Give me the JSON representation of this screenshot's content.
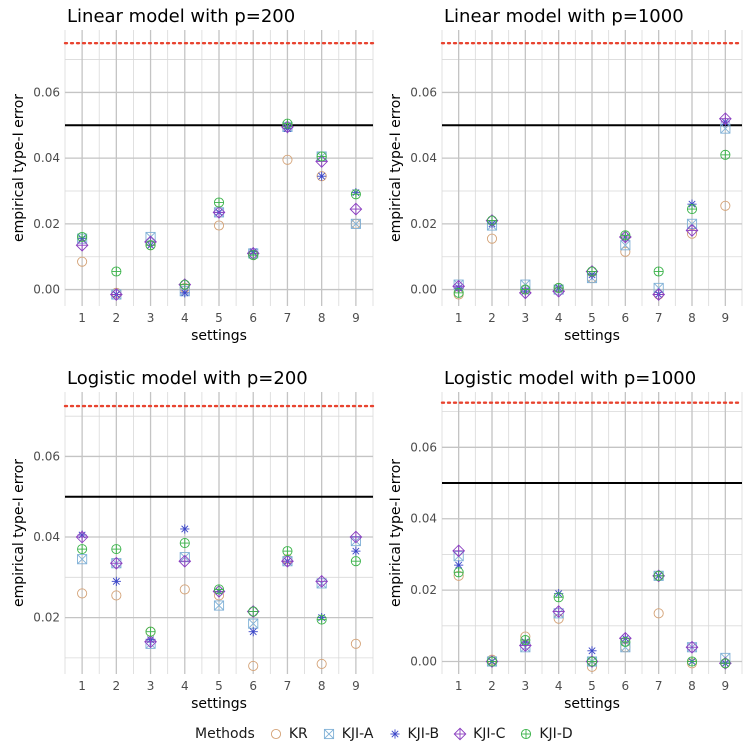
{
  "legend": {
    "title": "Methods",
    "methods": [
      {
        "key": "KR",
        "label": "KR",
        "color": "#d4a276",
        "marker": "circle-icon"
      },
      {
        "key": "KJI-A",
        "label": "KJI-A",
        "color": "#7fb0d6",
        "marker": "boxed-x-icon"
      },
      {
        "key": "KJI-B",
        "label": "KJI-B",
        "color": "#3a45c8",
        "marker": "asterisk-icon"
      },
      {
        "key": "KJI-C",
        "label": "KJI-C",
        "color": "#8b3fc0",
        "marker": "diamond-plus-icon"
      },
      {
        "key": "KJI-D",
        "label": "KJI-D",
        "color": "#3bb34a",
        "marker": "circle-plus-icon"
      }
    ]
  },
  "chart_data": [
    {
      "type": "scatter",
      "title": "Linear model with p=200",
      "xlabel": "settings",
      "ylabel": "empirical type-I error",
      "x": [
        1,
        2,
        3,
        4,
        5,
        6,
        7,
        8,
        9
      ],
      "ylim": [
        -0.005,
        0.079
      ],
      "yticks": [
        0.0,
        0.02,
        0.04,
        0.06
      ],
      "ytick_labels": [
        "0.00",
        "0.02",
        "0.04",
        "0.06"
      ],
      "reference_lines": {
        "solid": 0.05,
        "dotted": 0.075,
        "dotted_color": "#e8432f"
      },
      "series": [
        {
          "name": "KR",
          "values": [
            0.0085,
            -0.001,
            0.0135,
            0.0005,
            0.0195,
            0.0105,
            0.0395,
            0.0345,
            0.02
          ]
        },
        {
          "name": "KJI-A",
          "values": [
            0.0155,
            -0.0015,
            0.016,
            -0.0005,
            0.0235,
            0.011,
            0.0495,
            0.0405,
            0.02
          ]
        },
        {
          "name": "KJI-B",
          "values": [
            0.0155,
            -0.0015,
            0.0135,
            -0.001,
            0.0235,
            0.0115,
            0.049,
            0.0345,
            0.0295
          ]
        },
        {
          "name": "KJI-C",
          "values": [
            0.0135,
            -0.0015,
            0.0145,
            0.0015,
            0.0235,
            0.011,
            0.0495,
            0.039,
            0.0245
          ]
        },
        {
          "name": "KJI-D",
          "values": [
            0.016,
            0.0055,
            0.0135,
            0.0015,
            0.0265,
            0.0105,
            0.0505,
            0.0405,
            0.029
          ]
        }
      ]
    },
    {
      "type": "scatter",
      "title": "Linear model with p=1000",
      "xlabel": "settings",
      "ylabel": "empirical type-I error",
      "x": [
        1,
        2,
        3,
        4,
        5,
        6,
        7,
        8,
        9
      ],
      "ylim": [
        -0.005,
        0.079
      ],
      "yticks": [
        0.0,
        0.02,
        0.04,
        0.06
      ],
      "ytick_labels": [
        "0.00",
        "0.02",
        "0.04",
        "0.06"
      ],
      "reference_lines": {
        "solid": 0.05,
        "dotted": 0.075,
        "dotted_color": "#e8432f"
      },
      "series": [
        {
          "name": "KR",
          "values": [
            -0.0015,
            0.0155,
            0.0,
            0.0005,
            0.0035,
            0.0115,
            -0.0015,
            0.017,
            0.0255
          ]
        },
        {
          "name": "KJI-A",
          "values": [
            0.0015,
            0.0195,
            0.0015,
            0.0,
            0.0035,
            0.0135,
            0.0005,
            0.02,
            0.049
          ]
        },
        {
          "name": "KJI-B",
          "values": [
            0.0005,
            0.02,
            -0.0005,
            0.0005,
            0.0045,
            0.016,
            -0.0015,
            0.026,
            0.051
          ]
        },
        {
          "name": "KJI-C",
          "values": [
            0.001,
            0.021,
            -0.001,
            -0.0005,
            0.0055,
            0.016,
            -0.0015,
            0.018,
            0.052
          ]
        },
        {
          "name": "KJI-D",
          "values": [
            -0.001,
            0.021,
            0.0,
            0.0005,
            0.0055,
            0.0165,
            0.0055,
            0.0245,
            0.041
          ]
        }
      ]
    },
    {
      "type": "scatter",
      "title": "Logistic model with p=200",
      "xlabel": "settings",
      "ylabel": "empirical type-I error",
      "x": [
        1,
        2,
        3,
        4,
        5,
        6,
        7,
        8,
        9
      ],
      "ylim": [
        0.006,
        0.076
      ],
      "yticks": [
        0.02,
        0.04,
        0.06
      ],
      "ytick_labels": [
        "0.02",
        "0.04",
        "0.06"
      ],
      "reference_lines": {
        "solid": 0.05,
        "dotted": 0.0725,
        "dotted_color": "#e8432f"
      },
      "series": [
        {
          "name": "KR",
          "values": [
            0.026,
            0.0255,
            0.0165,
            0.027,
            0.0255,
            0.008,
            0.0345,
            0.0085,
            0.0135
          ]
        },
        {
          "name": "KJI-A",
          "values": [
            0.0345,
            0.0335,
            0.0135,
            0.035,
            0.023,
            0.0185,
            0.034,
            0.0285,
            0.039
          ]
        },
        {
          "name": "KJI-B",
          "values": [
            0.0405,
            0.029,
            0.0145,
            0.042,
            0.0265,
            0.0165,
            0.034,
            0.02,
            0.0365
          ]
        },
        {
          "name": "KJI-C",
          "values": [
            0.04,
            0.0335,
            0.014,
            0.034,
            0.0265,
            0.0215,
            0.034,
            0.029,
            0.04
          ]
        },
        {
          "name": "KJI-D",
          "values": [
            0.037,
            0.037,
            0.0165,
            0.0385,
            0.027,
            0.0215,
            0.0365,
            0.0195,
            0.034
          ]
        }
      ]
    },
    {
      "type": "scatter",
      "title": "Logistic model with p=1000",
      "xlabel": "settings",
      "ylabel": "empirical type-I error",
      "x": [
        1,
        2,
        3,
        4,
        5,
        6,
        7,
        8,
        9
      ],
      "ylim": [
        -0.0035,
        0.0755
      ],
      "yticks": [
        0.0,
        0.02,
        0.04,
        0.06
      ],
      "ytick_labels": [
        "0.00",
        "0.02",
        "0.04",
        "0.06"
      ],
      "reference_lines": {
        "solid": 0.05,
        "dotted": 0.0725,
        "dotted_color": "#e8432f"
      },
      "series": [
        {
          "name": "KR",
          "values": [
            0.024,
            0.0005,
            0.007,
            0.012,
            -0.0015,
            0.004,
            0.0135,
            -0.0005,
            -0.0005
          ]
        },
        {
          "name": "KJI-A",
          "values": [
            0.0295,
            0.0,
            0.004,
            0.0135,
            0.0,
            0.004,
            0.024,
            0.004,
            0.001
          ]
        },
        {
          "name": "KJI-B",
          "values": [
            0.027,
            0.0,
            0.0055,
            0.019,
            0.003,
            0.0065,
            0.024,
            0.0,
            -0.0005
          ]
        },
        {
          "name": "KJI-C",
          "values": [
            0.031,
            0.0,
            0.0045,
            0.014,
            0.0,
            0.0065,
            0.024,
            0.004,
            -0.0005
          ]
        },
        {
          "name": "KJI-D",
          "values": [
            0.025,
            0.0,
            0.006,
            0.018,
            0.0,
            0.0055,
            0.024,
            0.0,
            -0.0005
          ]
        }
      ]
    }
  ]
}
